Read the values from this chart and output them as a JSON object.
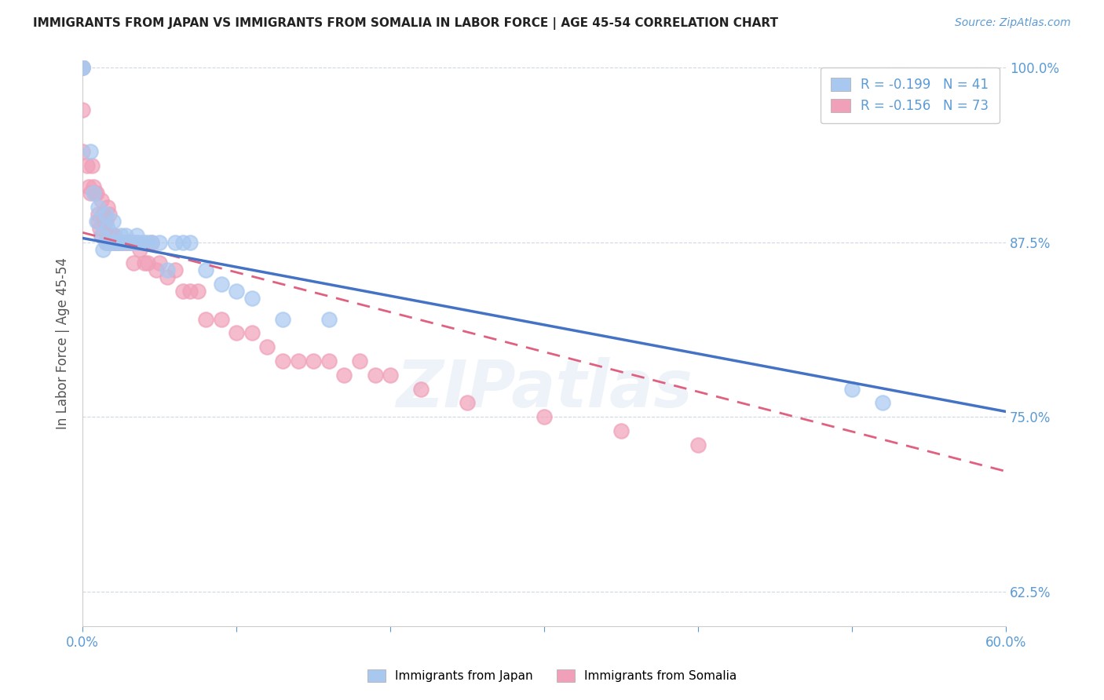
{
  "title": "IMMIGRANTS FROM JAPAN VS IMMIGRANTS FROM SOMALIA IN LABOR FORCE | AGE 45-54 CORRELATION CHART",
  "source": "Source: ZipAtlas.com",
  "ylabel": "In Labor Force | Age 45-54",
  "xmin": 0.0,
  "xmax": 0.6,
  "ymin": 0.6,
  "ymax": 1.005,
  "japan_R": -0.199,
  "japan_N": 41,
  "somalia_R": -0.156,
  "somalia_N": 73,
  "japan_color": "#a8c8f0",
  "somalia_color": "#f0a0b8",
  "japan_line_color": "#4472c4",
  "somalia_line_color": "#e06080",
  "japan_scatter_x": [
    0.0,
    0.0,
    0.005,
    0.007,
    0.009,
    0.01,
    0.012,
    0.013,
    0.015,
    0.015,
    0.016,
    0.018,
    0.02,
    0.02,
    0.022,
    0.023,
    0.025,
    0.025,
    0.027,
    0.028,
    0.03,
    0.032,
    0.035,
    0.035,
    0.038,
    0.04,
    0.042,
    0.045,
    0.05,
    0.055,
    0.06,
    0.065,
    0.07,
    0.08,
    0.09,
    0.1,
    0.11,
    0.13,
    0.16,
    0.5,
    0.52
  ],
  "japan_scatter_y": [
    1.0,
    1.0,
    0.94,
    0.91,
    0.89,
    0.9,
    0.88,
    0.87,
    0.875,
    0.895,
    0.885,
    0.875,
    0.875,
    0.89,
    0.875,
    0.875,
    0.88,
    0.875,
    0.875,
    0.88,
    0.875,
    0.875,
    0.88,
    0.875,
    0.875,
    0.875,
    0.875,
    0.875,
    0.875,
    0.855,
    0.875,
    0.875,
    0.875,
    0.855,
    0.845,
    0.84,
    0.835,
    0.82,
    0.82,
    0.77,
    0.76
  ],
  "somalia_scatter_x": [
    0.0,
    0.0,
    0.0,
    0.003,
    0.004,
    0.005,
    0.006,
    0.007,
    0.008,
    0.009,
    0.01,
    0.01,
    0.011,
    0.012,
    0.012,
    0.013,
    0.014,
    0.015,
    0.015,
    0.016,
    0.016,
    0.017,
    0.017,
    0.018,
    0.019,
    0.02,
    0.02,
    0.021,
    0.021,
    0.022,
    0.022,
    0.023,
    0.024,
    0.025,
    0.025,
    0.026,
    0.027,
    0.028,
    0.029,
    0.03,
    0.031,
    0.032,
    0.033,
    0.035,
    0.037,
    0.04,
    0.042,
    0.045,
    0.048,
    0.05,
    0.055,
    0.06,
    0.065,
    0.07,
    0.075,
    0.08,
    0.09,
    0.1,
    0.11,
    0.12,
    0.13,
    0.14,
    0.15,
    0.16,
    0.17,
    0.18,
    0.19,
    0.2,
    0.22,
    0.25,
    0.3,
    0.35,
    0.4
  ],
  "somalia_scatter_y": [
    1.0,
    0.97,
    0.94,
    0.93,
    0.915,
    0.91,
    0.93,
    0.915,
    0.91,
    0.91,
    0.895,
    0.89,
    0.885,
    0.88,
    0.905,
    0.895,
    0.89,
    0.875,
    0.89,
    0.875,
    0.9,
    0.875,
    0.895,
    0.875,
    0.88,
    0.875,
    0.88,
    0.875,
    0.88,
    0.875,
    0.875,
    0.875,
    0.875,
    0.875,
    0.875,
    0.875,
    0.875,
    0.875,
    0.875,
    0.875,
    0.875,
    0.875,
    0.86,
    0.875,
    0.87,
    0.86,
    0.86,
    0.875,
    0.855,
    0.86,
    0.85,
    0.855,
    0.84,
    0.84,
    0.84,
    0.82,
    0.82,
    0.81,
    0.81,
    0.8,
    0.79,
    0.79,
    0.79,
    0.79,
    0.78,
    0.79,
    0.78,
    0.78,
    0.77,
    0.76,
    0.75,
    0.74,
    0.73
  ],
  "watermark": "ZIPatlas",
  "background_color": "#ffffff",
  "grid_color": "#d0d8e8",
  "tick_color": "#5b9bd5",
  "legend_label_japan": "Immigrants from Japan",
  "legend_label_somalia": "Immigrants from Somalia",
  "japan_line_intercept": 0.878,
  "japan_line_slope": -0.207,
  "somalia_line_intercept": 0.882,
  "somalia_line_slope": -0.285
}
